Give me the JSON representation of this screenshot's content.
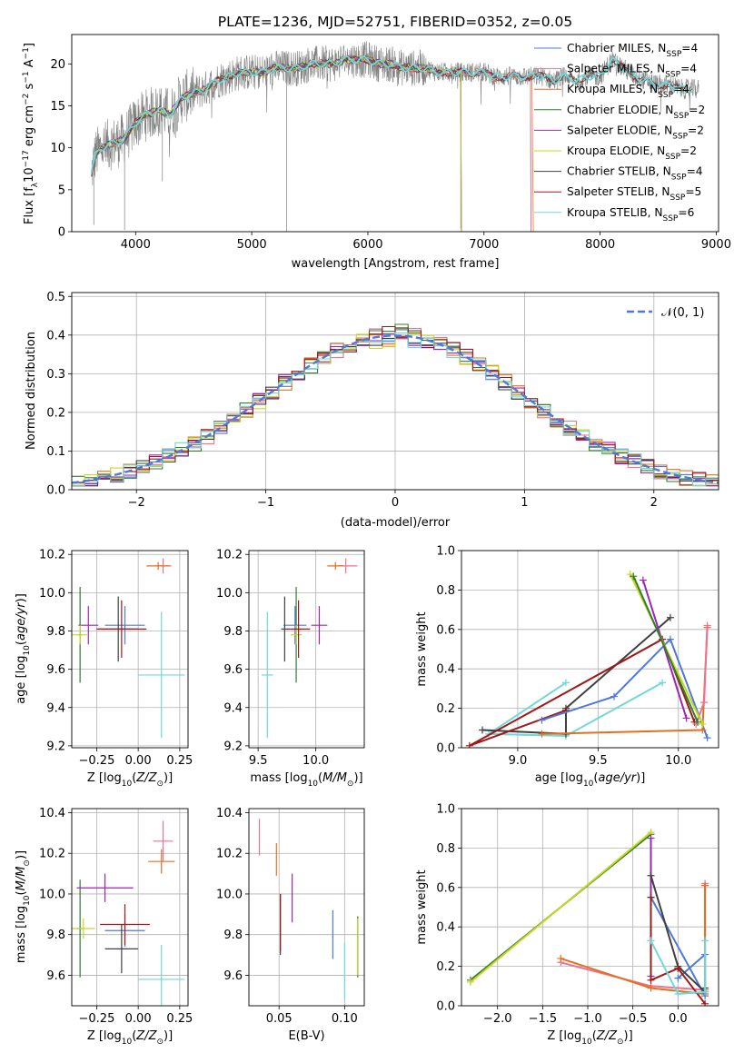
{
  "figure": {
    "title": "PLATE=1236, MJD=52751, FIBERID=0352, z=0.05"
  },
  "colors": {
    "Chabrier MILES": "#4e79d8",
    "Salpeter MILES": "#f07090",
    "Kroupa MILES": "#e07020",
    "Chabrier ELODIE": "#2f7d2f",
    "Salpeter ELODIE": "#9b26b6",
    "Kroupa ELODIE": "#c8d820",
    "Chabrier STELIB": "#404040",
    "Salpeter STELIB": "#a01818",
    "Kroupa STELIB": "#70d8d8"
  },
  "chart_data": [
    {
      "id": "spectrum",
      "type": "line",
      "title": "PLATE=1236, MJD=52751, FIBERID=0352, z=0.05",
      "xlabel": "wavelength [Angstrom, rest frame]",
      "ylabel": "Flux [f_λ 10^-17 erg cm^-2 s^-1 A^-1]",
      "xlim": [
        3450,
        9020
      ],
      "ylim": [
        0,
        23.5
      ],
      "xticks": [
        4000,
        5000,
        6000,
        7000,
        8000,
        9000
      ],
      "yticks": [
        0,
        5,
        10,
        15,
        20
      ],
      "grid": false,
      "legend": "top-right",
      "data_x": [
        3620,
        3650,
        3700,
        3800,
        3900,
        4000,
        4100,
        4200,
        4300,
        4400,
        4500,
        4600,
        4700,
        4800,
        4900,
        5000,
        5100,
        5200,
        5300,
        5400,
        5500,
        5600,
        5700,
        5800,
        5900,
        6000,
        6100,
        6200,
        6300,
        6400,
        6500,
        6600,
        6700,
        6800,
        6900,
        7000,
        7100,
        7200,
        7300,
        7400,
        7500,
        7600,
        7700,
        7800,
        7900,
        8000,
        8100,
        8200,
        8300,
        8400,
        8500,
        8600,
        8700,
        8800
      ],
      "data_y": [
        7,
        9,
        10,
        10.5,
        11,
        13,
        14,
        14.5,
        14,
        16,
        16.5,
        17,
        18,
        18.5,
        19,
        19,
        19,
        19.5,
        19.5,
        19.5,
        20,
        20,
        20,
        20.5,
        20.5,
        20.5,
        20,
        20,
        19.5,
        19.5,
        19.5,
        19,
        19,
        19,
        19,
        19,
        18.5,
        18.5,
        18.5,
        18.5,
        18.5,
        18,
        18.5,
        18,
        18.5,
        18.5,
        20.5,
        19.5,
        18.5,
        18,
        17.5,
        17.5,
        17,
        17
      ],
      "series": [
        {
          "name": "Chabrier MILES, N_SSP=4",
          "legend": "Chabrier MILES, N",
          "sub": "SSP",
          "tail": "=4",
          "color": "#4e79d8",
          "end": 7400
        },
        {
          "name": "Salpeter MILES, N_SSP=4",
          "legend": "Salpeter MILES, N",
          "sub": "SSP",
          "tail": "=4",
          "color": "#f07090",
          "end": 7400
        },
        {
          "name": "Kroupa MILES, N_SSP=4",
          "legend": "Kroupa MILES, N",
          "sub": "SSP",
          "tail": "=4",
          "color": "#e07020",
          "end": 7420
        },
        {
          "name": "Chabrier ELODIE, N_SSP=2",
          "legend": "Chabrier ELODIE, N",
          "sub": "SSP",
          "tail": "=2",
          "color": "#2f7d2f",
          "end": 6800
        },
        {
          "name": "Salpeter ELODIE, N_SSP=2",
          "legend": "Salpeter ELODIE, N",
          "sub": "SSP",
          "tail": "=2",
          "color": "#9b26b6",
          "end": 6800
        },
        {
          "name": "Kroupa ELODIE, N_SSP=2",
          "legend": "Kroupa ELODIE, N",
          "sub": "SSP",
          "tail": "=2",
          "color": "#c8d820",
          "end": 6800
        },
        {
          "name": "Chabrier STELIB, N_SSP=4",
          "legend": "Chabrier STELIB, N",
          "sub": "SSP",
          "tail": "=4",
          "color": "#404040",
          "end": 8800
        },
        {
          "name": "Salpeter STELIB, N_SSP=5",
          "legend": "Salpeter STELIB, N",
          "sub": "SSP",
          "tail": "=5",
          "color": "#a01818",
          "end": 8800
        },
        {
          "name": "Kroupa STELIB, N_SSP=6",
          "legend": "Kroupa STELIB, N",
          "sub": "SSP",
          "tail": "=6",
          "color": "#70d8d8",
          "end": 8800
        }
      ]
    },
    {
      "id": "residuals",
      "type": "line",
      "xlabel": "(data-model)/error",
      "ylabel": "Normed distribution",
      "xlim": [
        -2.5,
        2.5
      ],
      "ylim": [
        0,
        0.51
      ],
      "xticks": [
        -2,
        -1,
        0,
        1,
        2
      ],
      "yticks": [
        0.0,
        0.1,
        0.2,
        0.3,
        0.4,
        0.5
      ],
      "grid": true,
      "legend": "top-right",
      "reference": {
        "name": "N(0,1)",
        "color": "#4e79d8",
        "style": "dashed"
      },
      "histogram_bin_width": 0.1
    },
    {
      "id": "age_vs_Z",
      "type": "scatter",
      "xlabel": "Z [log10(Z/Z⊙)]",
      "ylabel": "age [log10(age/yr)]",
      "xlim": [
        -0.4,
        0.3
      ],
      "ylim": [
        9.19,
        10.22
      ],
      "xticks": [
        -0.25,
        0.0,
        0.25
      ],
      "yticks": [
        9.2,
        9.4,
        9.6,
        9.8,
        10.0,
        10.2
      ],
      "grid": true,
      "points": [
        {
          "model": "Chabrier MILES",
          "x": -0.08,
          "y": 9.83,
          "xerr": 0.12,
          "yerr": 0.1
        },
        {
          "model": "Salpeter MILES",
          "x": 0.15,
          "y": 10.14,
          "xerr": 0.05,
          "yerr": 0.04
        },
        {
          "model": "Kroupa MILES",
          "x": 0.12,
          "y": 10.14,
          "xerr": 0.07,
          "yerr": 0.02
        },
        {
          "model": "Chabrier ELODIE",
          "x": -0.35,
          "y": 9.78,
          "xerr": 0.01,
          "yerr": 0.25
        },
        {
          "model": "Salpeter ELODIE",
          "x": -0.3,
          "y": 9.83,
          "xerr": 0.06,
          "yerr": 0.1
        },
        {
          "model": "Kroupa ELODIE",
          "x": -0.35,
          "y": 9.78,
          "xerr": 0.05,
          "yerr": 0.05
        },
        {
          "model": "Chabrier STELIB",
          "x": -0.12,
          "y": 9.81,
          "xerr": 0.12,
          "yerr": 0.17
        },
        {
          "model": "Salpeter STELIB",
          "x": -0.1,
          "y": 9.81,
          "xerr": 0.15,
          "yerr": 0.15
        },
        {
          "model": "Kroupa STELIB",
          "x": 0.14,
          "y": 9.57,
          "xerr": 0.14,
          "yerr": 0.33
        }
      ]
    },
    {
      "id": "age_vs_mass",
      "type": "scatter",
      "xlabel": "mass [log10(M/M⊙)]",
      "xlim": [
        9.42,
        10.42
      ],
      "ylim": [
        9.19,
        10.22
      ],
      "xticks": [
        9.5,
        10.0
      ],
      "yticks": [
        9.2,
        9.4,
        9.6,
        9.8,
        10.0,
        10.2
      ],
      "grid": true,
      "points": [
        {
          "model": "Chabrier MILES",
          "x": 9.82,
          "y": 9.83,
          "xerr": 0.1,
          "yerr": 0.1
        },
        {
          "model": "Salpeter MILES",
          "x": 10.26,
          "y": 10.14,
          "xerr": 0.1,
          "yerr": 0.04
        },
        {
          "model": "Kroupa MILES",
          "x": 10.17,
          "y": 10.14,
          "xerr": 0.07,
          "yerr": 0.02
        },
        {
          "model": "Chabrier ELODIE",
          "x": 9.83,
          "y": 9.78,
          "xerr": 0.01,
          "yerr": 0.25
        },
        {
          "model": "Salpeter ELODIE",
          "x": 10.03,
          "y": 9.83,
          "xerr": 0.07,
          "yerr": 0.1
        },
        {
          "model": "Kroupa ELODIE",
          "x": 9.83,
          "y": 9.78,
          "xerr": 0.05,
          "yerr": 0.05
        },
        {
          "model": "Chabrier STELIB",
          "x": 9.73,
          "y": 9.81,
          "xerr": 0.03,
          "yerr": 0.17
        },
        {
          "model": "Salpeter STELIB",
          "x": 9.85,
          "y": 9.81,
          "xerr": 0.1,
          "yerr": 0.15
        },
        {
          "model": "Kroupa STELIB",
          "x": 9.58,
          "y": 9.57,
          "xerr": 0.05,
          "yerr": 0.33
        }
      ]
    },
    {
      "id": "weight_vs_age",
      "type": "line",
      "xlabel": "age [log10(age/yr)]",
      "ylabel": "mass weight",
      "xlim": [
        8.65,
        10.25
      ],
      "ylim": [
        0,
        1.0
      ],
      "xticks": [
        9.0,
        9.5,
        10.0
      ],
      "yticks": [
        0.0,
        0.2,
        0.4,
        0.6,
        0.8,
        1.0
      ],
      "grid": true,
      "lines": [
        {
          "model": "Kroupa STELIB",
          "x": [
            9.9,
            9.3,
            8.82,
            9.3
          ],
          "y": [
            0.33,
            0.06,
            0.07,
            0.33
          ]
        },
        {
          "model": "Chabrier STELIB",
          "x": [
            9.95,
            9.3,
            9.3,
            8.78
          ],
          "y": [
            0.66,
            0.2,
            0.07,
            0.09
          ]
        },
        {
          "model": "Salpeter STELIB",
          "x": [
            10.1,
            9.9,
            8.7,
            9.3
          ],
          "y": [
            0.13,
            0.55,
            0.01,
            0.19
          ]
        },
        {
          "model": "Chabrier MILES",
          "x": [
            10.18,
            9.95,
            9.6,
            9.15
          ],
          "y": [
            0.05,
            0.55,
            0.26,
            0.14
          ]
        },
        {
          "model": "Kroupa MILES",
          "x": [
            9.15,
            10.15,
            10.18
          ],
          "y": [
            0.07,
            0.09,
            0.61
          ]
        },
        {
          "model": "Salpeter MILES",
          "x": [
            10.18,
            10.16,
            10.11
          ],
          "y": [
            0.62,
            0.23,
            0.12
          ]
        },
        {
          "model": "Salpeter ELODIE",
          "x": [
            9.78,
            10.05
          ],
          "y": [
            0.85,
            0.15
          ]
        },
        {
          "model": "Kroupa ELODIE",
          "x": [
            9.7,
            10.15
          ],
          "y": [
            0.88,
            0.12
          ]
        },
        {
          "model": "Chabrier ELODIE",
          "x": [
            9.72,
            10.12
          ],
          "y": [
            0.87,
            0.13
          ]
        }
      ]
    },
    {
      "id": "mass_vs_Z",
      "type": "scatter",
      "xlabel": "Z [log10(Z/Z⊙)]",
      "ylabel": "mass [log10(M/M⊙)]",
      "xlim": [
        -0.4,
        0.3
      ],
      "ylim": [
        9.45,
        10.42
      ],
      "xticks": [
        -0.25,
        0.0,
        0.25
      ],
      "yticks": [
        9.6,
        9.8,
        10.0,
        10.2,
        10.4
      ],
      "grid": true,
      "points": [
        {
          "model": "Chabrier MILES",
          "x": -0.08,
          "y": 9.82,
          "xerr": 0.12,
          "yerr": 0.08
        },
        {
          "model": "Salpeter MILES",
          "x": 0.15,
          "y": 10.26,
          "xerr": 0.06,
          "yerr": 0.1
        },
        {
          "model": "Kroupa MILES",
          "x": 0.14,
          "y": 10.16,
          "xerr": 0.08,
          "yerr": 0.06
        },
        {
          "model": "Chabrier ELODIE",
          "x": -0.35,
          "y": 9.83,
          "xerr": 0.02,
          "yerr": 0.24
        },
        {
          "model": "Salpeter ELODIE",
          "x": -0.2,
          "y": 10.03,
          "xerr": 0.17,
          "yerr": 0.07
        },
        {
          "model": "Kroupa ELODIE",
          "x": -0.33,
          "y": 9.83,
          "xerr": 0.07,
          "yerr": 0.05
        },
        {
          "model": "Chabrier STELIB",
          "x": -0.1,
          "y": 9.73,
          "xerr": 0.1,
          "yerr": 0.12
        },
        {
          "model": "Salpeter STELIB",
          "x": -0.08,
          "y": 9.85,
          "xerr": 0.15,
          "yerr": 0.1
        },
        {
          "model": "Kroupa STELIB",
          "x": 0.14,
          "y": 9.58,
          "xerr": 0.14,
          "yerr": 0.17
        }
      ]
    },
    {
      "id": "mass_vs_ebv",
      "type": "scatter",
      "xlabel": "E(B-V)",
      "xlim": [
        0.027,
        0.115
      ],
      "ylim": [
        9.45,
        10.42
      ],
      "xticks": [
        0.05,
        0.1
      ],
      "yticks": [
        9.6,
        9.8,
        10.0,
        10.2,
        10.4
      ],
      "grid": true,
      "points": [
        {
          "model": "Chabrier MILES",
          "x": 0.091,
          "y": 9.8,
          "xerr": 0,
          "yerr": 0.12
        },
        {
          "model": "Salpeter MILES",
          "x": 0.035,
          "y": 10.28,
          "xerr": 0,
          "yerr": 0.09
        },
        {
          "model": "Kroupa MILES",
          "x": 0.048,
          "y": 10.17,
          "xerr": 0,
          "yerr": 0.08
        },
        {
          "model": "Chabrier ELODIE",
          "x": 0.11,
          "y": 9.74,
          "xerr": 0,
          "yerr": 0.15
        },
        {
          "model": "Salpeter ELODIE",
          "x": 0.06,
          "y": 9.98,
          "xerr": 0,
          "yerr": 0.12
        },
        {
          "model": "Kroupa ELODIE",
          "x": 0.11,
          "y": 9.74,
          "xerr": 0,
          "yerr": 0.14
        },
        {
          "model": "Chabrier STELIB",
          "x": 0.051,
          "y": 9.85,
          "xerr": 0,
          "yerr": 0.15
        },
        {
          "model": "Salpeter STELIB",
          "x": 0.051,
          "y": 9.86,
          "xerr": 0,
          "yerr": 0.14
        },
        {
          "model": "Kroupa STELIB",
          "x": 0.1,
          "y": 9.62,
          "xerr": 0,
          "yerr": 0.14
        }
      ]
    },
    {
      "id": "weight_vs_Z",
      "type": "line",
      "xlabel": "Z [log10(Z/Z⊙)]",
      "ylabel": "mass weight",
      "xlim": [
        -2.4,
        0.45
      ],
      "ylim": [
        0,
        1.0
      ],
      "xticks": [
        -2.0,
        -1.5,
        -1.0,
        -0.5,
        0.0
      ],
      "yticks": [
        0.0,
        0.2,
        0.4,
        0.6,
        0.8,
        1.0
      ],
      "grid": true,
      "lines": [
        {
          "model": "Chabrier ELODIE",
          "x": [
            -2.3,
            -0.3
          ],
          "y": [
            0.13,
            0.87
          ]
        },
        {
          "model": "Kroupa ELODIE",
          "x": [
            -2.3,
            -0.3
          ],
          "y": [
            0.12,
            0.88
          ]
        },
        {
          "model": "Salpeter ELODIE",
          "x": [
            -0.3,
            -0.3
          ],
          "y": [
            0.85,
            0.15
          ]
        },
        {
          "model": "Salpeter MILES",
          "x": [
            -1.3,
            -0.3,
            0.3,
            0.3
          ],
          "y": [
            0.22,
            0.1,
            0.08,
            0.62
          ]
        },
        {
          "model": "Kroupa MILES",
          "x": [
            -1.3,
            -0.3,
            0.3,
            0.3
          ],
          "y": [
            0.24,
            0.09,
            0.06,
            0.61
          ]
        },
        {
          "model": "Chabrier MILES",
          "x": [
            -0.3,
            0.3,
            0.3,
            0.0
          ],
          "y": [
            0.55,
            0.05,
            0.26,
            0.14
          ]
        },
        {
          "model": "Chabrier STELIB",
          "x": [
            -0.3,
            0.0,
            0.3,
            0.3
          ],
          "y": [
            0.66,
            0.2,
            0.07,
            0.09
          ]
        },
        {
          "model": "Salpeter STELIB",
          "x": [
            -0.3,
            -0.3,
            0.0,
            0.3
          ],
          "y": [
            0.55,
            0.13,
            0.19,
            0.01
          ]
        },
        {
          "model": "Kroupa STELIB",
          "x": [
            -0.3,
            0.0,
            0.3,
            0.3
          ],
          "y": [
            0.33,
            0.06,
            0.07,
            0.33
          ]
        }
      ]
    }
  ]
}
